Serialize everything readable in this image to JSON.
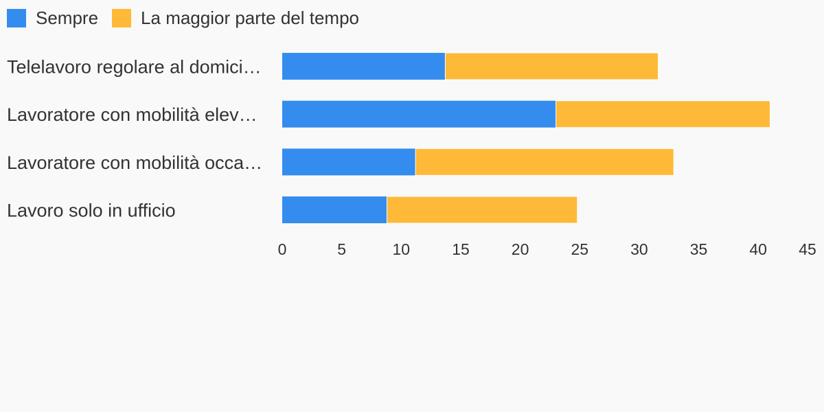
{
  "chart_data": {
    "type": "bar",
    "orientation": "horizontal",
    "stacked": true,
    "categories": [
      "Telelavoro regolare al domicilio",
      "Lavoratore con mobilità elevata",
      "Lavoratore con mobilità occasionale",
      "Lavoro solo in ufficio"
    ],
    "category_labels_display": [
      "Telelavoro regolare al domici…",
      "Lavoratore con mobilità elev…",
      "Lavoratore con mobilità occa…",
      "Lavoro solo in ufficio"
    ],
    "series": [
      {
        "name": "Sempre",
        "color": "#348cee",
        "values": [
          13.7,
          23.0,
          11.2,
          8.8
        ]
      },
      {
        "name": "La maggior parte del tempo",
        "color": "#ffb938",
        "values": [
          17.9,
          18.0,
          21.7,
          16.0
        ]
      }
    ],
    "xlim": [
      0,
      45
    ],
    "xticks": [
      0,
      5,
      10,
      15,
      20,
      25,
      30,
      35,
      40,
      45
    ],
    "legend_position": "top-left",
    "grid": false
  }
}
